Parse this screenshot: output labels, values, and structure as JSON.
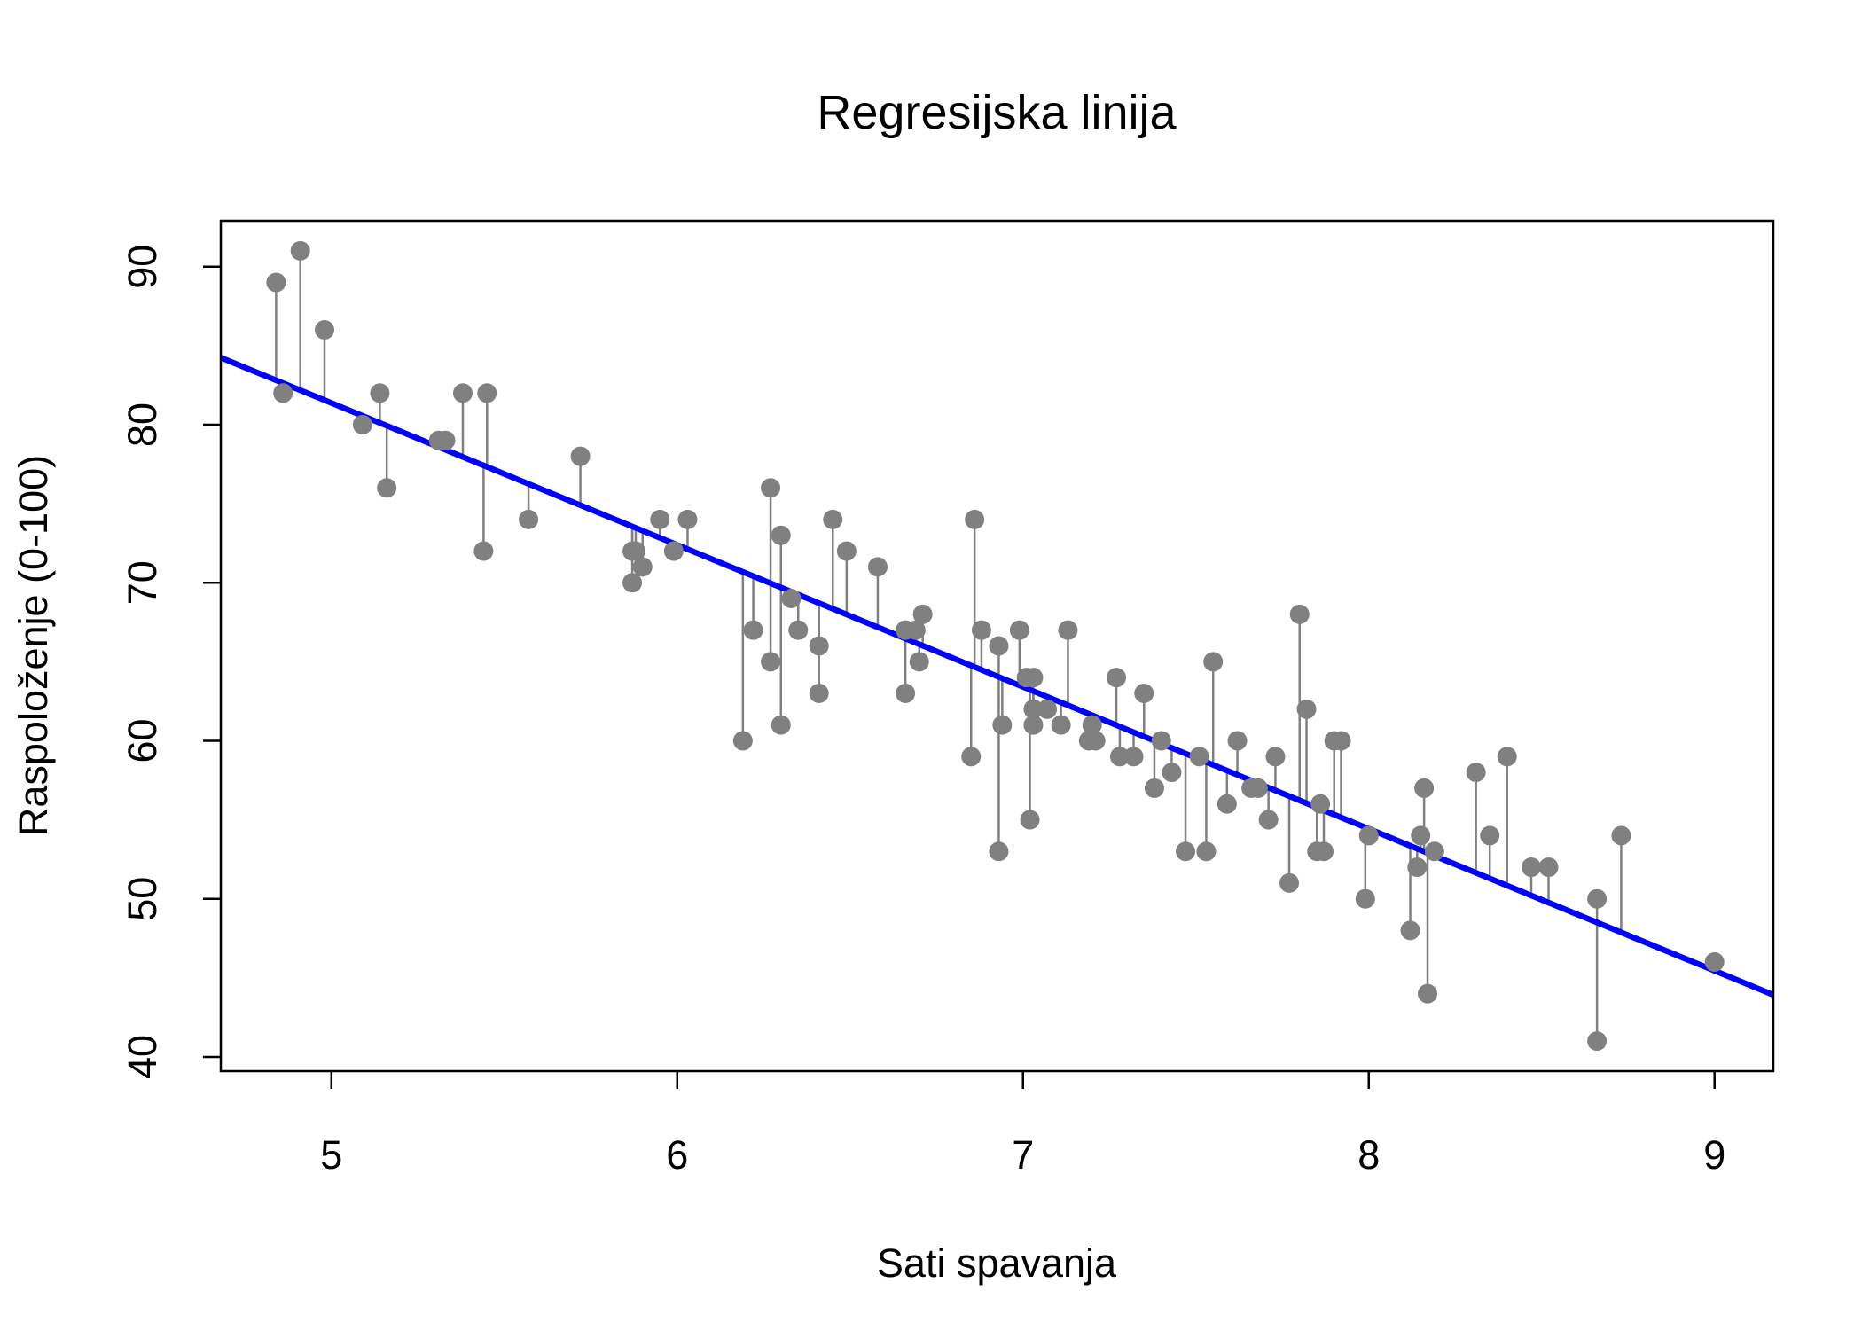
{
  "chart_data": {
    "type": "scatter",
    "title": "Regresijska linija",
    "xlabel": "Sati spavanja",
    "ylabel": "Raspoloženje (0-100)",
    "xlim": [
      4.68,
      9.17
    ],
    "ylim": [
      39.1,
      92.9
    ],
    "x_ticks": [
      5,
      6,
      7,
      8,
      9
    ],
    "y_ticks": [
      40,
      50,
      60,
      70,
      80,
      90
    ],
    "grid": false,
    "legend": "none",
    "point_color": "#808080",
    "residual_color": "#808080",
    "line_color": "#0000ff",
    "regression_line": {
      "intercept": 126.27,
      "slope": -8.98
    },
    "points": [
      {
        "x": 4.84,
        "y": 89
      },
      {
        "x": 4.86,
        "y": 82
      },
      {
        "x": 4.91,
        "y": 91
      },
      {
        "x": 4.98,
        "y": 86
      },
      {
        "x": 5.09,
        "y": 80
      },
      {
        "x": 5.14,
        "y": 82
      },
      {
        "x": 5.16,
        "y": 76
      },
      {
        "x": 5.31,
        "y": 79
      },
      {
        "x": 5.33,
        "y": 79
      },
      {
        "x": 5.38,
        "y": 82
      },
      {
        "x": 5.44,
        "y": 72
      },
      {
        "x": 5.45,
        "y": 82
      },
      {
        "x": 5.57,
        "y": 74
      },
      {
        "x": 5.72,
        "y": 78
      },
      {
        "x": 5.87,
        "y": 72
      },
      {
        "x": 5.87,
        "y": 70
      },
      {
        "x": 5.88,
        "y": 72
      },
      {
        "x": 5.9,
        "y": 71
      },
      {
        "x": 5.95,
        "y": 74
      },
      {
        "x": 5.99,
        "y": 72
      },
      {
        "x": 6.03,
        "y": 74
      },
      {
        "x": 6.19,
        "y": 60
      },
      {
        "x": 6.22,
        "y": 67
      },
      {
        "x": 6.27,
        "y": 76
      },
      {
        "x": 6.27,
        "y": 65
      },
      {
        "x": 6.3,
        "y": 73
      },
      {
        "x": 6.3,
        "y": 61
      },
      {
        "x": 6.33,
        "y": 69
      },
      {
        "x": 6.35,
        "y": 67
      },
      {
        "x": 6.41,
        "y": 66
      },
      {
        "x": 6.41,
        "y": 63
      },
      {
        "x": 6.45,
        "y": 74
      },
      {
        "x": 6.49,
        "y": 72
      },
      {
        "x": 6.58,
        "y": 71
      },
      {
        "x": 6.66,
        "y": 67
      },
      {
        "x": 6.66,
        "y": 63
      },
      {
        "x": 6.69,
        "y": 67
      },
      {
        "x": 6.7,
        "y": 65
      },
      {
        "x": 6.71,
        "y": 68
      },
      {
        "x": 6.85,
        "y": 59
      },
      {
        "x": 6.86,
        "y": 74
      },
      {
        "x": 6.88,
        "y": 67
      },
      {
        "x": 6.93,
        "y": 66
      },
      {
        "x": 6.93,
        "y": 53
      },
      {
        "x": 6.94,
        "y": 61
      },
      {
        "x": 6.99,
        "y": 67
      },
      {
        "x": 7.01,
        "y": 64
      },
      {
        "x": 7.02,
        "y": 55
      },
      {
        "x": 7.03,
        "y": 64
      },
      {
        "x": 7.03,
        "y": 62
      },
      {
        "x": 7.03,
        "y": 61
      },
      {
        "x": 7.07,
        "y": 62
      },
      {
        "x": 7.11,
        "y": 61
      },
      {
        "x": 7.13,
        "y": 67
      },
      {
        "x": 7.19,
        "y": 60
      },
      {
        "x": 7.2,
        "y": 61
      },
      {
        "x": 7.21,
        "y": 60
      },
      {
        "x": 7.27,
        "y": 64
      },
      {
        "x": 7.28,
        "y": 59
      },
      {
        "x": 7.32,
        "y": 59
      },
      {
        "x": 7.35,
        "y": 63
      },
      {
        "x": 7.38,
        "y": 57
      },
      {
        "x": 7.4,
        "y": 60
      },
      {
        "x": 7.43,
        "y": 58
      },
      {
        "x": 7.47,
        "y": 53
      },
      {
        "x": 7.51,
        "y": 59
      },
      {
        "x": 7.53,
        "y": 53
      },
      {
        "x": 7.55,
        "y": 65
      },
      {
        "x": 7.59,
        "y": 56
      },
      {
        "x": 7.62,
        "y": 60
      },
      {
        "x": 7.66,
        "y": 57
      },
      {
        "x": 7.68,
        "y": 57
      },
      {
        "x": 7.71,
        "y": 55
      },
      {
        "x": 7.73,
        "y": 59
      },
      {
        "x": 7.77,
        "y": 51
      },
      {
        "x": 7.8,
        "y": 68
      },
      {
        "x": 7.82,
        "y": 62
      },
      {
        "x": 7.85,
        "y": 53
      },
      {
        "x": 7.86,
        "y": 56
      },
      {
        "x": 7.87,
        "y": 53
      },
      {
        "x": 7.9,
        "y": 60
      },
      {
        "x": 7.92,
        "y": 60
      },
      {
        "x": 7.99,
        "y": 50
      },
      {
        "x": 8.0,
        "y": 54
      },
      {
        "x": 8.12,
        "y": 48
      },
      {
        "x": 8.14,
        "y": 52
      },
      {
        "x": 8.15,
        "y": 54
      },
      {
        "x": 8.16,
        "y": 57
      },
      {
        "x": 8.17,
        "y": 44
      },
      {
        "x": 8.19,
        "y": 53
      },
      {
        "x": 8.31,
        "y": 58
      },
      {
        "x": 8.35,
        "y": 54
      },
      {
        "x": 8.4,
        "y": 59
      },
      {
        "x": 8.47,
        "y": 52
      },
      {
        "x": 8.52,
        "y": 52
      },
      {
        "x": 8.66,
        "y": 50
      },
      {
        "x": 8.66,
        "y": 41
      },
      {
        "x": 8.73,
        "y": 54
      },
      {
        "x": 9.0,
        "y": 46
      }
    ]
  }
}
